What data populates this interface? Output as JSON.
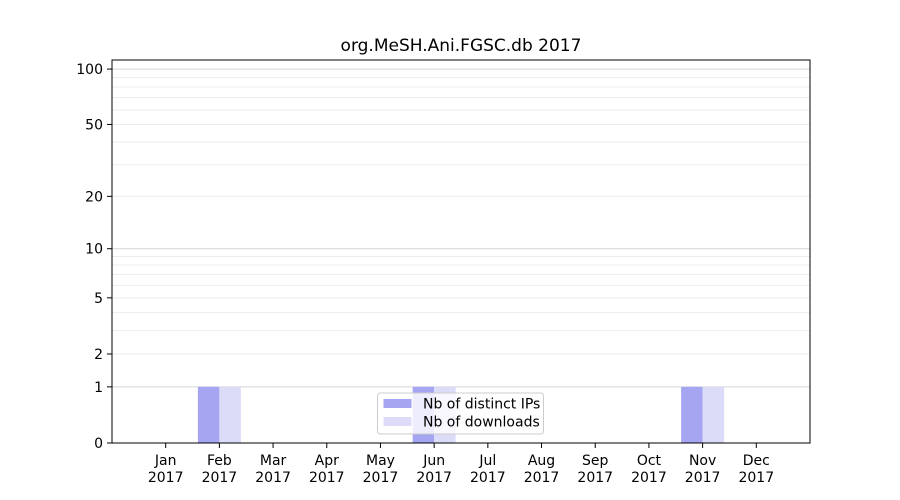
{
  "figure": {
    "background": "#ffffff"
  },
  "chart_data": {
    "type": "bar",
    "title": "org.MeSH.Ani.FGSC.db 2017",
    "xlabel": "",
    "ylabel": "",
    "categories": [
      "Jan 2017",
      "Feb 2017",
      "Mar 2017",
      "Apr 2017",
      "May 2017",
      "Jun 2017",
      "Jul 2017",
      "Aug 2017",
      "Sep 2017",
      "Oct 2017",
      "Nov 2017",
      "Dec 2017"
    ],
    "series": [
      {
        "name": "Nb of distinct IPs",
        "color": "#a5a5f2",
        "values": [
          0,
          1,
          0,
          0,
          0,
          1,
          0,
          0,
          0,
          0,
          1,
          0
        ]
      },
      {
        "name": "Nb of downloads",
        "color": "#dcdcf9",
        "values": [
          0,
          1,
          0,
          0,
          0,
          1,
          0,
          0,
          0,
          0,
          1,
          0
        ]
      }
    ],
    "yscale": "log1p",
    "ylim": [
      0,
      112
    ],
    "yticks": [
      0,
      1,
      2,
      5,
      10,
      20,
      50,
      100
    ],
    "minor_grid_values": [
      2,
      3,
      4,
      5,
      6,
      7,
      8,
      9,
      20,
      30,
      40,
      50,
      60,
      70,
      80,
      90
    ],
    "major_grid_values": [
      1,
      10,
      100
    ],
    "grid": true,
    "legend_position": "lower center inside",
    "style": {
      "grid_minor_color": "#ededed",
      "grid_major_color": "#d5d5d5",
      "spine_color": "#000000",
      "tick_color": "#000000",
      "text_color": "#000000",
      "legend_border_color": "#cccccc",
      "legend_background": "rgba(255,255,255,0.8)"
    }
  }
}
